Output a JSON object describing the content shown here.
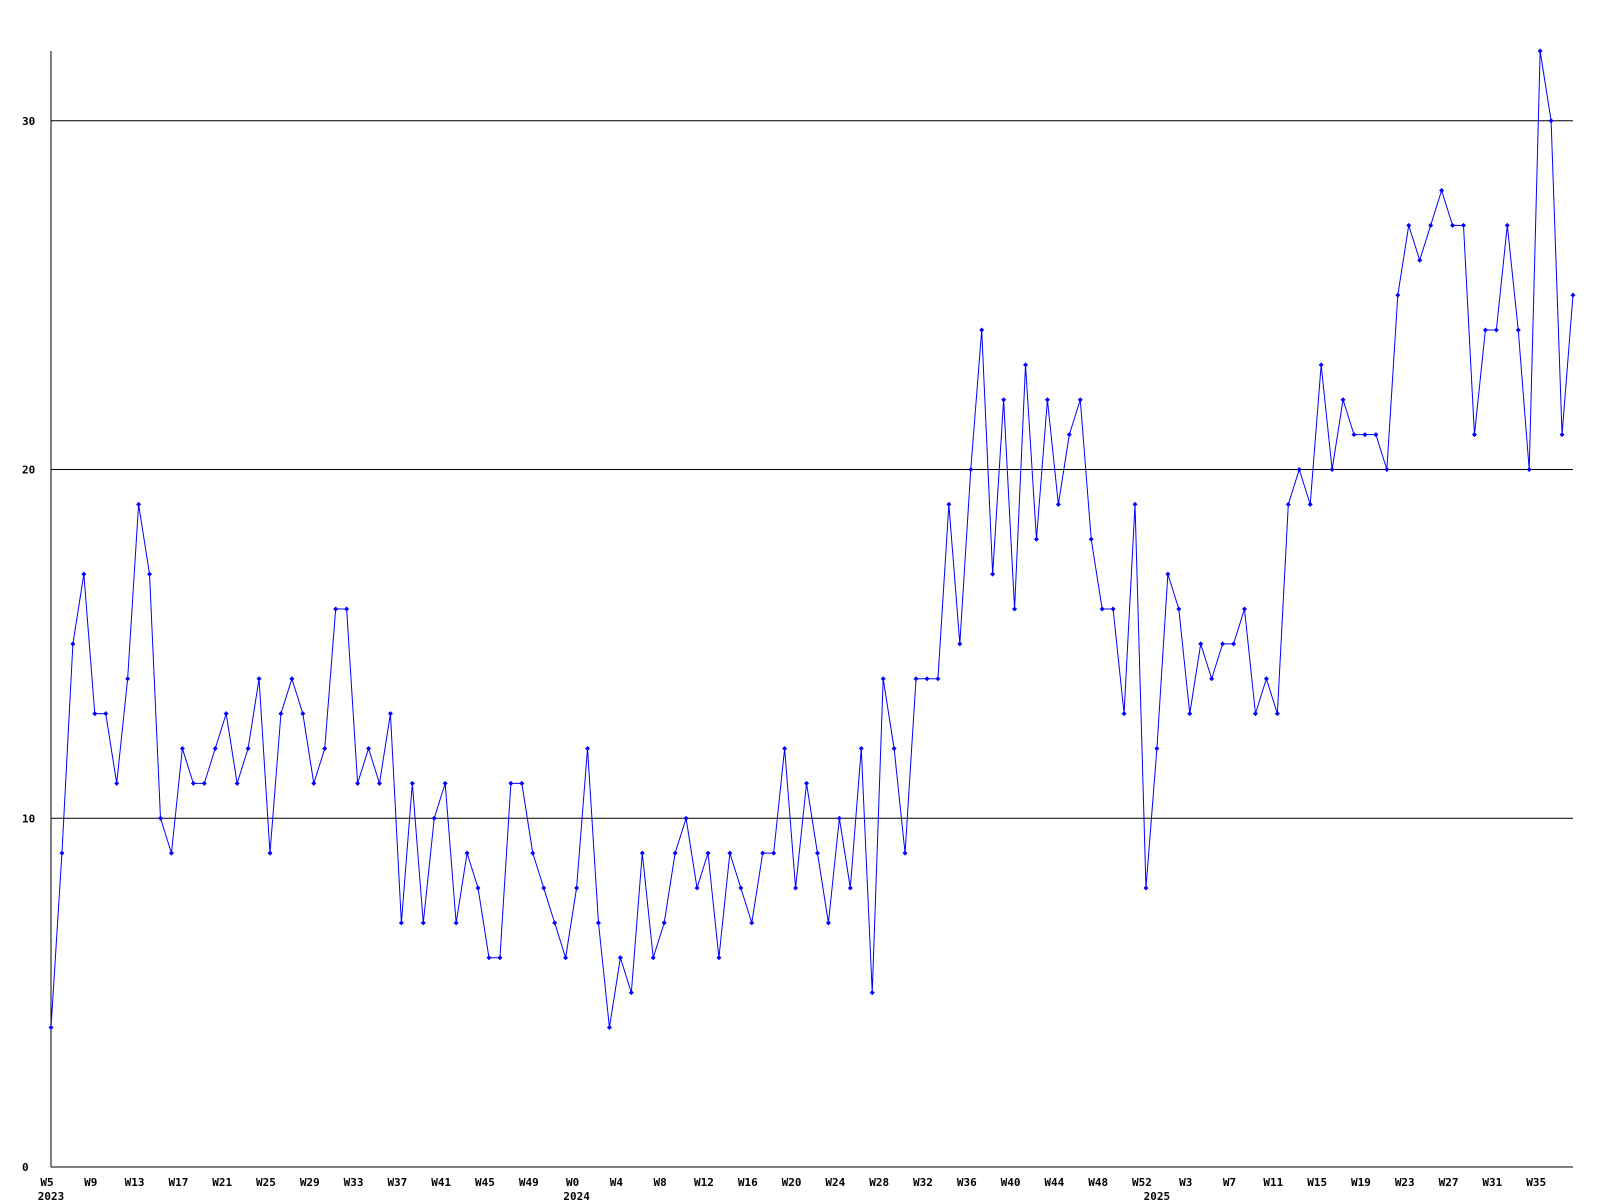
{
  "chart_data": {
    "type": "line",
    "categories": [
      "W5",
      null,
      null,
      null,
      "W9",
      null,
      null,
      null,
      "W13",
      null,
      null,
      null,
      "W17",
      null,
      null,
      null,
      "W21",
      null,
      null,
      null,
      "W25",
      null,
      null,
      null,
      "W29",
      null,
      null,
      null,
      "W33",
      null,
      null,
      null,
      "W37",
      null,
      null,
      null,
      "W41",
      null,
      null,
      null,
      "W45",
      null,
      null,
      null,
      "W49",
      null,
      null,
      null,
      "W0",
      null,
      null,
      null,
      "W4",
      null,
      null,
      null,
      "W8",
      null,
      null,
      null,
      "W12",
      null,
      null,
      null,
      "W16",
      null,
      null,
      null,
      "W20",
      null,
      null,
      null,
      "W24",
      null,
      null,
      null,
      "W28",
      null,
      null,
      null,
      "W32",
      null,
      null,
      null,
      "W36",
      null,
      null,
      null,
      "W40",
      null,
      null,
      null,
      "W44",
      null,
      null,
      null,
      "W48",
      null,
      null,
      null,
      "W52",
      null,
      null,
      null,
      "W3",
      null,
      null,
      null,
      "W7",
      null,
      null,
      null,
      "W11",
      null,
      null,
      null,
      "W15",
      null,
      null,
      null,
      "W19",
      null,
      null,
      null,
      "W23",
      null,
      null,
      null,
      "W27",
      null,
      null,
      null,
      "W31",
      null,
      null,
      null,
      "W35",
      null,
      null,
      null
    ],
    "year_labels": [
      {
        "category": 0,
        "label": "2023"
      },
      {
        "category": 48,
        "label": "2024"
      },
      {
        "category": 101,
        "label": "2025"
      }
    ],
    "series": [
      {
        "color": "#0000ff",
        "values": [
          4,
          9,
          15,
          17,
          13,
          13,
          11,
          14,
          19,
          17,
          10,
          9,
          12,
          11,
          11,
          12,
          13,
          11,
          12,
          14,
          9,
          13,
          14,
          13,
          11,
          12,
          16,
          16,
          11,
          12,
          11,
          13,
          7,
          11,
          7,
          10,
          11,
          7,
          9,
          8,
          6,
          6,
          11,
          11,
          9,
          8,
          7,
          6,
          8,
          12,
          7,
          4,
          6,
          5,
          9,
          6,
          7,
          9,
          10,
          8,
          9,
          6,
          9,
          8,
          7,
          9,
          9,
          12,
          8,
          11,
          9,
          7,
          10,
          8,
          12,
          5,
          14,
          12,
          9,
          14,
          14,
          14,
          19,
          15,
          20,
          24,
          17,
          22,
          16,
          23,
          18,
          22,
          19,
          21,
          22,
          18,
          16,
          16,
          13,
          19,
          8,
          12,
          17,
          16,
          13,
          15,
          14,
          15,
          15,
          16,
          13,
          14,
          13,
          19,
          20,
          19,
          23,
          20,
          22,
          21,
          21,
          21,
          20,
          25,
          27,
          26,
          27,
          28,
          27,
          27,
          21,
          24,
          24,
          27,
          24,
          20,
          32,
          30,
          21,
          25
        ]
      }
    ],
    "ylim": [
      0,
      32
    ],
    "yticks": [
      0,
      10,
      20,
      30
    ],
    "grid": true
  }
}
